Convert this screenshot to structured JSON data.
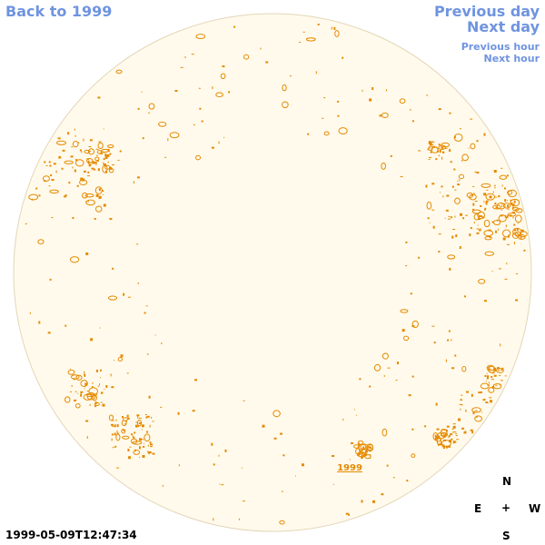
{
  "nav": {
    "back": "Back to 1999",
    "previous_day": "Previous day",
    "next_day": "Next day",
    "previous_hour": "Previous hour",
    "next_hour": "Next hour"
  },
  "disk": {
    "label": "1999",
    "fill_color": "#fffaec",
    "edge_color": "#e4d6b8",
    "contour_color": "#e68a00"
  },
  "timestamp": "1999-05-09T12:47:34",
  "compass": {
    "north": "N",
    "east": "E",
    "center": "+",
    "west": "W",
    "south": "S"
  },
  "colors": {
    "link": "#6f94e0",
    "text": "#000000"
  }
}
